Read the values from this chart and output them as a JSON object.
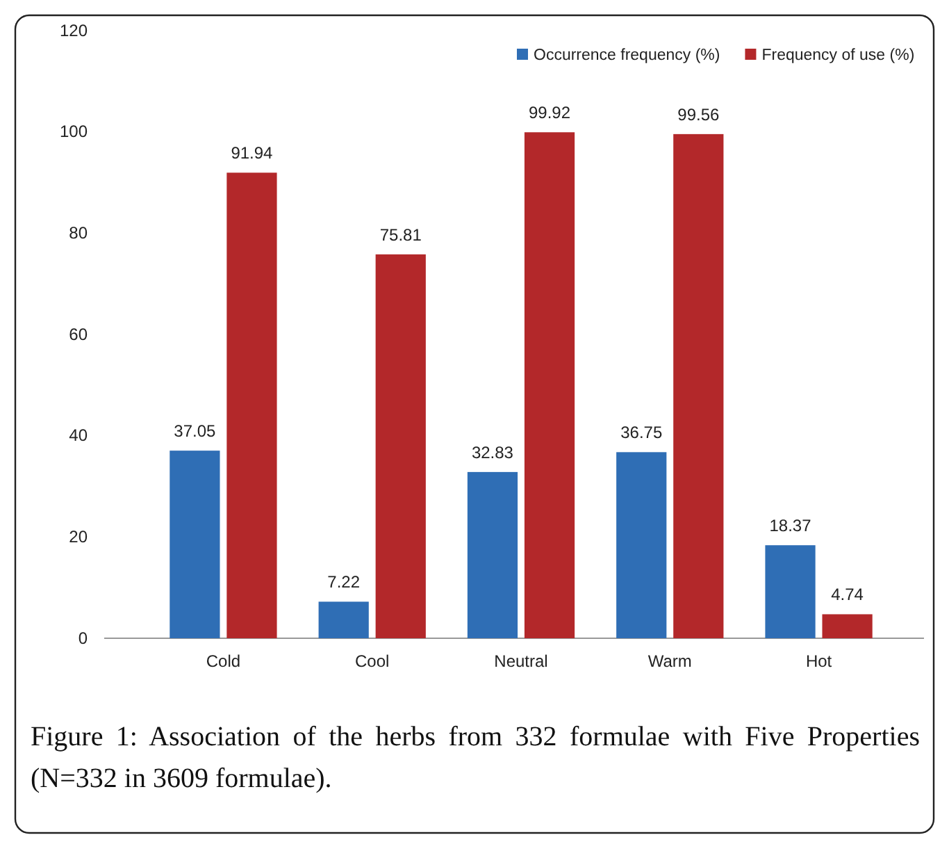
{
  "chart_data": {
    "type": "bar",
    "categories": [
      "Cold",
      "Cool",
      "Neutral",
      "Warm",
      "Hot"
    ],
    "series": [
      {
        "name": "Occurrence frequency (%)",
        "color": "#2f6eb5",
        "values": [
          37.05,
          7.22,
          32.83,
          36.75,
          18.37
        ]
      },
      {
        "name": "Frequency of use (%)",
        "color": "#b3282a",
        "values": [
          91.94,
          75.81,
          99.92,
          99.56,
          4.74
        ]
      }
    ],
    "ylim": [
      0,
      120
    ],
    "yticks": [
      0,
      20,
      40,
      60,
      80,
      100,
      120
    ],
    "grid": false,
    "legend": "top right",
    "data_labels": true,
    "annotations": [
      "Figure 1: Association of the herbs from 332 formulae with Five Properties (N=332 in 3609 formulae)."
    ]
  }
}
